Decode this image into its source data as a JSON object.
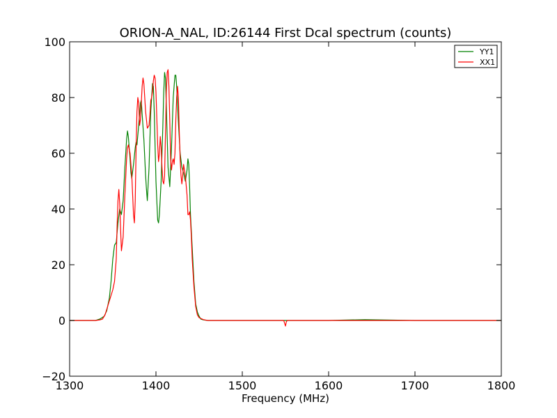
{
  "chart_data": {
    "type": "line",
    "title": "ORION-A_NAL, ID:26144 First Dcal spectrum (counts)",
    "xlabel": "Frequency (MHz)",
    "ylabel": "",
    "xlim": [
      1300,
      1800
    ],
    "ylim": [
      -20,
      100
    ],
    "xticks": [
      1300,
      1400,
      1500,
      1600,
      1700,
      1800
    ],
    "yticks": [
      -20,
      0,
      20,
      40,
      60,
      80,
      100
    ],
    "xtick_labels": [
      "1300",
      "1400",
      "1500",
      "1600",
      "1700",
      "1800"
    ],
    "ytick_labels": [
      "−20",
      "0",
      "20",
      "40",
      "60",
      "80",
      "100"
    ],
    "grid": false,
    "legend": "top-right",
    "series": [
      {
        "name": "YY1",
        "color": "#008000",
        "x": [
          1300,
          1320,
          1330,
          1335,
          1340,
          1343,
          1346,
          1348,
          1350,
          1352,
          1354,
          1356,
          1358,
          1360,
          1362,
          1364,
          1366,
          1367,
          1368,
          1370,
          1371,
          1372,
          1374,
          1376,
          1377,
          1378,
          1380,
          1382,
          1383,
          1384,
          1386,
          1388,
          1389,
          1390,
          1392,
          1394,
          1396,
          1397,
          1398,
          1400,
          1402,
          1403,
          1404,
          1406,
          1408,
          1409,
          1410,
          1411,
          1412,
          1414,
          1416,
          1418,
          1420,
          1422,
          1423,
          1424,
          1426,
          1428,
          1430,
          1432,
          1434,
          1436,
          1437,
          1438,
          1439,
          1440,
          1442,
          1444,
          1446,
          1448,
          1450,
          1452,
          1455,
          1460,
          1465,
          1470,
          1480,
          1500,
          1550,
          1600,
          1642,
          1700,
          1800
        ],
        "y": [
          0,
          0,
          0,
          0.5,
          1.5,
          3.5,
          8,
          14,
          22,
          27,
          28,
          35,
          40,
          38,
          43,
          55,
          65,
          68,
          66,
          58,
          53,
          51,
          56,
          62,
          64,
          63,
          70,
          78,
          79,
          74,
          65,
          52,
          47,
          43,
          55,
          75,
          85,
          84,
          75,
          50,
          36,
          35,
          38,
          50,
          70,
          82,
          89,
          87,
          77,
          55,
          48,
          62,
          80,
          88,
          88,
          84,
          71,
          60,
          55,
          53,
          50,
          54,
          58,
          56,
          48,
          38,
          26,
          14,
          6,
          3,
          1.5,
          0.5,
          0.2,
          0,
          0,
          0,
          0,
          0,
          0,
          0,
          0.3,
          0,
          0
        ]
      },
      {
        "name": "XX1",
        "color": "#ff0000",
        "x": [
          1300,
          1320,
          1330,
          1335,
          1338,
          1341,
          1344,
          1347,
          1350,
          1352,
          1354,
          1355,
          1356,
          1357,
          1358,
          1359,
          1360,
          1362,
          1364,
          1366,
          1367,
          1368,
          1370,
          1372,
          1374,
          1375,
          1376,
          1377,
          1378,
          1379,
          1380,
          1381,
          1382,
          1383,
          1384,
          1385,
          1386,
          1388,
          1390,
          1392,
          1393,
          1394,
          1395,
          1396,
          1397,
          1398,
          1399,
          1400,
          1402,
          1403,
          1404,
          1405,
          1406,
          1407,
          1408,
          1409,
          1410,
          1411,
          1412,
          1413,
          1414,
          1415,
          1416,
          1417,
          1418,
          1419,
          1420,
          1421,
          1422,
          1423,
          1424,
          1425,
          1426,
          1427,
          1428,
          1429,
          1430,
          1431,
          1432,
          1434,
          1436,
          1437,
          1438,
          1439,
          1440,
          1441,
          1442,
          1444,
          1446,
          1448,
          1450,
          1455,
          1460,
          1465,
          1470,
          1480,
          1500,
          1548,
          1549,
          1550,
          1551,
          1552,
          1600,
          1700,
          1800
        ],
        "y": [
          0,
          0,
          0,
          0.2,
          0.5,
          2,
          5,
          8,
          11,
          14,
          22,
          34,
          43,
          47,
          42,
          33,
          25,
          30,
          45,
          58,
          62,
          63,
          60,
          52,
          38,
          35,
          43,
          62,
          75,
          80,
          78,
          70,
          72,
          78,
          84,
          87,
          85,
          75,
          69,
          70,
          74,
          79,
          80,
          82,
          86,
          88,
          87,
          82,
          63,
          57,
          60,
          66,
          62,
          55,
          50,
          49,
          52,
          67,
          82,
          89,
          90,
          84,
          72,
          58,
          54,
          57,
          58,
          56,
          60,
          72,
          80,
          84,
          80,
          68,
          58,
          52,
          49,
          52,
          56,
          52,
          45,
          38,
          38,
          39,
          36,
          30,
          22,
          12,
          5,
          2,
          1,
          0.3,
          0,
          0,
          0,
          0,
          0,
          0,
          -1,
          -2,
          -0.5,
          0,
          0,
          0,
          0
        ]
      }
    ]
  }
}
